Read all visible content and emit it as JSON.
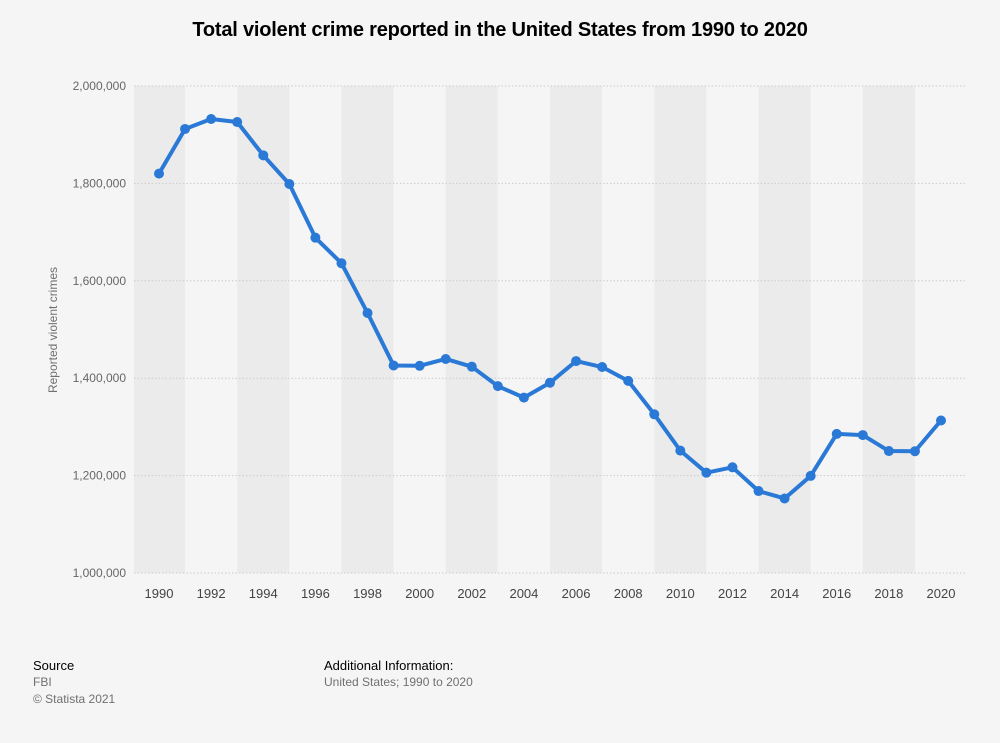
{
  "chart_data": {
    "type": "line",
    "title": "Total violent crime reported in the United States from 1990 to 2020",
    "xlabel": "",
    "ylabel": "Reported violent crimes",
    "x": [
      1990,
      1991,
      1992,
      1993,
      1994,
      1995,
      1996,
      1997,
      1998,
      1999,
      2000,
      2001,
      2002,
      2003,
      2004,
      2005,
      2006,
      2007,
      2008,
      2009,
      2010,
      2011,
      2012,
      2013,
      2014,
      2015,
      2016,
      2017,
      2018,
      2019,
      2020
    ],
    "series": [
      {
        "name": "",
        "values": [
          1820127,
          1911767,
          1932274,
          1926017,
          1857670,
          1798792,
          1688540,
          1636096,
          1533887,
          1426044,
          1425486,
          1439480,
          1423677,
          1383676,
          1360088,
          1390745,
          1435123,
          1422970,
          1394461,
          1325896,
          1251248,
          1206005,
          1217057,
          1168298,
          1153022,
          1199310,
          1285606,
          1283220,
          1250393,
          1250000,
          1313105
        ]
      }
    ],
    "xticks": [
      "1990",
      "1992",
      "1994",
      "1996",
      "1998",
      "2000",
      "2002",
      "2004",
      "2006",
      "2008",
      "2010",
      "2012",
      "2014",
      "2016",
      "2018",
      "2020"
    ],
    "yticks": [
      "1,000,000",
      "1,200,000",
      "1,400,000",
      "1,600,000",
      "1,800,000",
      "2,000,000"
    ],
    "xlim": [
      1990,
      2020
    ],
    "ylim": [
      1000000,
      2000000
    ],
    "grid": true,
    "legend": "none",
    "colors": {
      "line": "#2a79d6",
      "band": "#ebebeb",
      "background": "#f5f5f5",
      "grid": "#cccccc"
    }
  },
  "footer": {
    "source_heading": "Source",
    "source_name": "FBI",
    "copyright": "© Statista 2021",
    "additional_heading": "Additional Information:",
    "additional_text": "United States; 1990 to 2020"
  }
}
